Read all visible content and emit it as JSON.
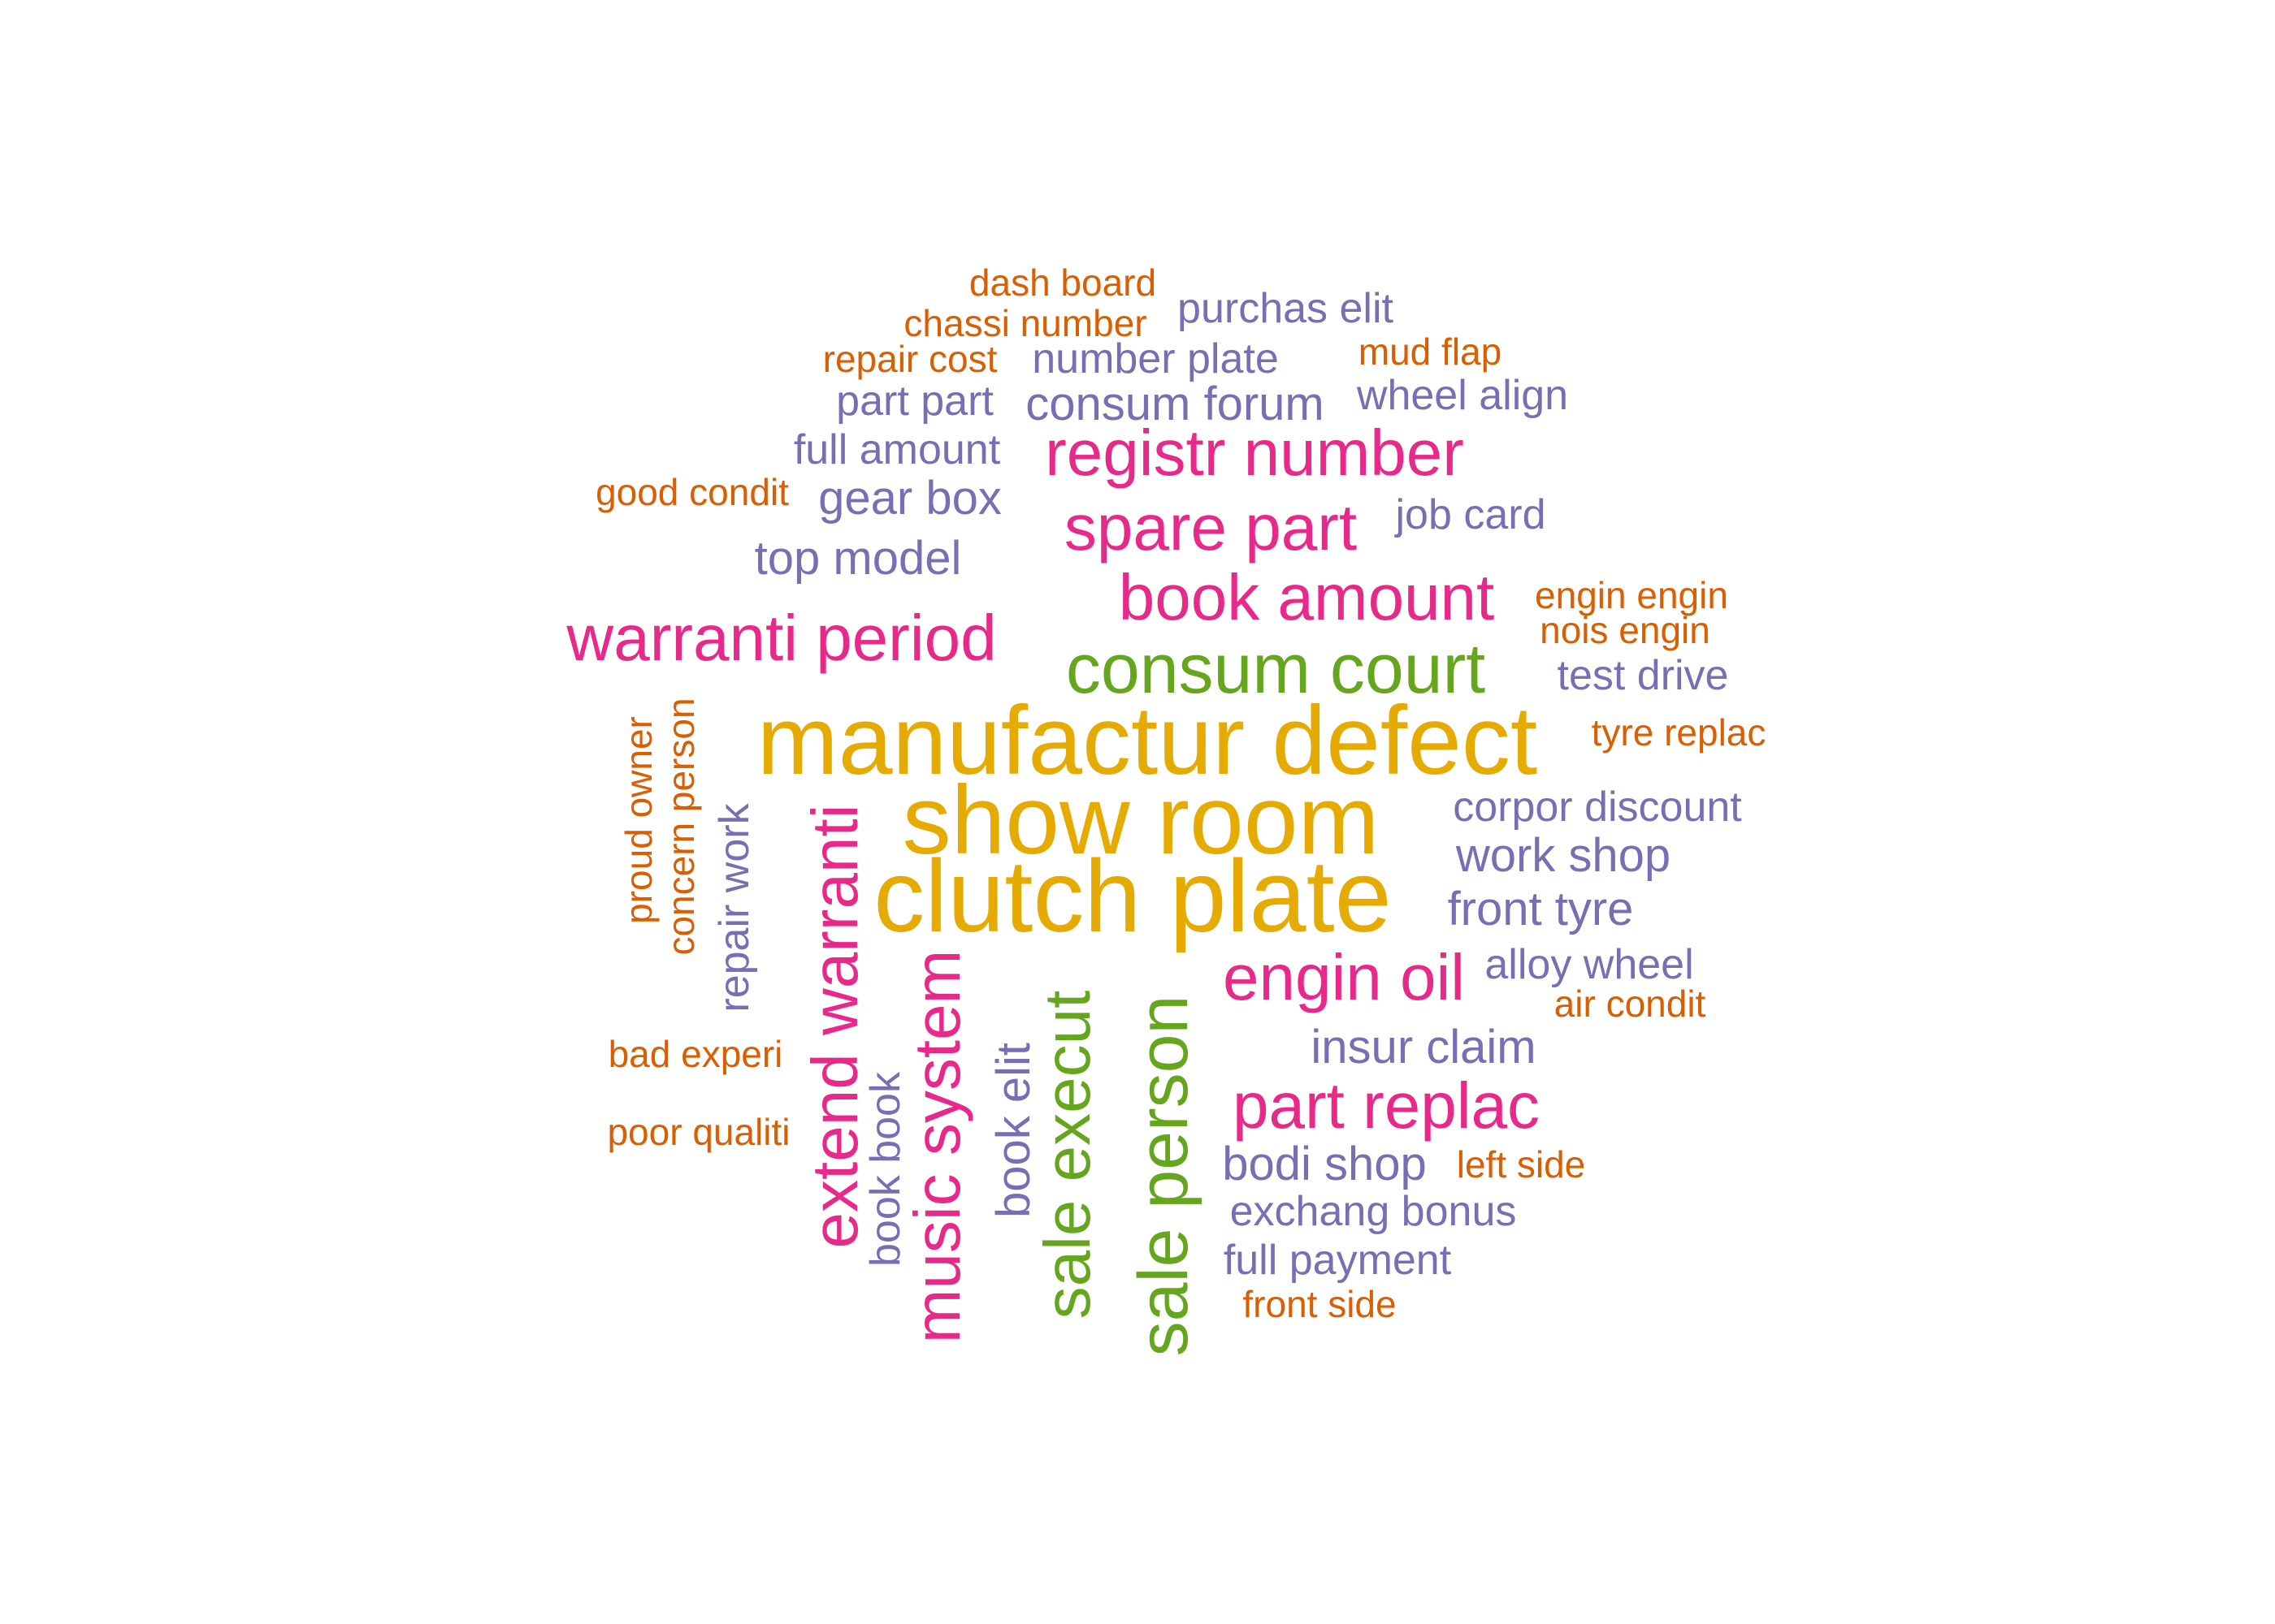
{
  "palette": {
    "orange": "#d95f02",
    "purple": "#7570b3",
    "pink": "#e7298a",
    "green": "#66a61e",
    "gold": "#e6ab02"
  },
  "words": [
    {
      "text": "dash board",
      "color": "orange"
    },
    {
      "text": "chassi number",
      "color": "orange"
    },
    {
      "text": "purchas elit",
      "color": "purple"
    },
    {
      "text": "repair cost",
      "color": "orange"
    },
    {
      "text": "number plate",
      "color": "purple"
    },
    {
      "text": "mud flap",
      "color": "orange"
    },
    {
      "text": "part part",
      "color": "purple"
    },
    {
      "text": "consum forum",
      "color": "purple"
    },
    {
      "text": "wheel align",
      "color": "purple"
    },
    {
      "text": "full amount",
      "color": "purple"
    },
    {
      "text": "registr number",
      "color": "pink"
    },
    {
      "text": "good condit",
      "color": "orange"
    },
    {
      "text": "gear box",
      "color": "purple"
    },
    {
      "text": "spare part",
      "color": "pink"
    },
    {
      "text": "job card",
      "color": "purple"
    },
    {
      "text": "top model",
      "color": "purple"
    },
    {
      "text": "book amount",
      "color": "pink"
    },
    {
      "text": "engin engin",
      "color": "orange"
    },
    {
      "text": "nois engin",
      "color": "orange"
    },
    {
      "text": "warranti period",
      "color": "pink"
    },
    {
      "text": "consum court",
      "color": "green"
    },
    {
      "text": "test drive",
      "color": "purple"
    },
    {
      "text": "manufactur defect",
      "color": "gold"
    },
    {
      "text": "tyre replac",
      "color": "orange"
    },
    {
      "text": "proud owner",
      "color": "orange"
    },
    {
      "text": "concern person",
      "color": "orange"
    },
    {
      "text": "repair work",
      "color": "purple"
    },
    {
      "text": "extend warranti",
      "color": "pink"
    },
    {
      "text": "show room",
      "color": "gold"
    },
    {
      "text": "corpor discount",
      "color": "purple"
    },
    {
      "text": "work shop",
      "color": "purple"
    },
    {
      "text": "clutch plate",
      "color": "gold"
    },
    {
      "text": "front tyre",
      "color": "purple"
    },
    {
      "text": "music system",
      "color": "pink"
    },
    {
      "text": "book elit",
      "color": "purple"
    },
    {
      "text": "sale execut",
      "color": "green"
    },
    {
      "text": "sale person",
      "color": "green"
    },
    {
      "text": "engin oil",
      "color": "pink"
    },
    {
      "text": "alloy wheel",
      "color": "purple"
    },
    {
      "text": "air condit",
      "color": "orange"
    },
    {
      "text": "bad experi",
      "color": "orange"
    },
    {
      "text": "insur claim",
      "color": "purple"
    },
    {
      "text": "book book",
      "color": "purple"
    },
    {
      "text": "part replac",
      "color": "pink"
    },
    {
      "text": "poor qualiti",
      "color": "orange"
    },
    {
      "text": "bodi shop",
      "color": "purple"
    },
    {
      "text": "left side",
      "color": "orange"
    },
    {
      "text": "exchang bonus",
      "color": "purple"
    },
    {
      "text": "full payment",
      "color": "purple"
    },
    {
      "text": "front side",
      "color": "orange"
    }
  ]
}
